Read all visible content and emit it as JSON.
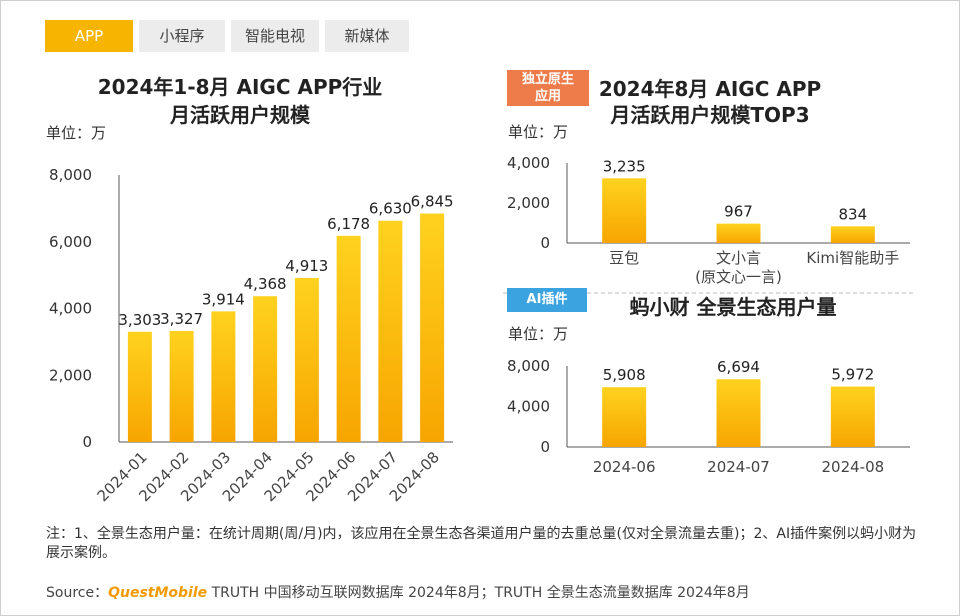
{
  "tabs": [
    {
      "label": "APP",
      "active": true
    },
    {
      "label": "小程序",
      "active": false
    },
    {
      "label": "智能电视",
      "active": false
    },
    {
      "label": "新媒体",
      "active": false
    }
  ],
  "colors": {
    "bar_top": "#ffd21f",
    "bar_bottom": "#f7a500",
    "tab_active": "#f7b400",
    "badge_orange": "#ee7b4a",
    "badge_blue": "#3aa3e0"
  },
  "badges": {
    "native": [
      "独立原生",
      "应用"
    ],
    "plugin": "AI插件"
  },
  "chart_data": [
    {
      "type": "bar",
      "title": [
        "2024年1-8月 AIGC APP行业",
        "月活跃用户规模"
      ],
      "unit_label": "单位：万",
      "categories": [
        "2024-01",
        "2024-02",
        "2024-03",
        "2024-04",
        "2024-05",
        "2024-06",
        "2024-07",
        "2024-08"
      ],
      "values": [
        3303,
        3327,
        3914,
        4368,
        4913,
        6178,
        6630,
        6845
      ],
      "value_labels": [
        "3,303",
        "3,327",
        "3,914",
        "4,368",
        "4,913",
        "6,178",
        "6,630",
        "6,845"
      ],
      "ylim": [
        0,
        8000
      ],
      "yticks": [
        "0",
        "2,000",
        "4,000",
        "6,000",
        "8,000"
      ]
    },
    {
      "type": "bar",
      "title": [
        "2024年8月 AIGC APP",
        "月活跃用户规模TOP3"
      ],
      "unit_label": "单位：万",
      "categories": [
        [
          "豆包"
        ],
        [
          "文小言",
          "(原文心一言)"
        ],
        [
          "Kimi智能助手"
        ]
      ],
      "values": [
        3235,
        967,
        834
      ],
      "value_labels": [
        "3,235",
        "967",
        "834"
      ],
      "ylim": [
        0,
        4000
      ],
      "yticks": [
        "0",
        "2,000",
        "4,000"
      ]
    },
    {
      "type": "bar",
      "title": [
        "蚂小财 全景生态用户量"
      ],
      "unit_label": "单位：万",
      "categories": [
        [
          "2024-06"
        ],
        [
          "2024-07"
        ],
        [
          "2024-08"
        ]
      ],
      "values": [
        5908,
        6694,
        5972
      ],
      "value_labels": [
        "5,908",
        "6,694",
        "5,972"
      ],
      "ylim": [
        0,
        8000
      ],
      "yticks": [
        "0",
        "4,000",
        "8,000"
      ]
    }
  ],
  "note": "注：1、全景生态用户量：在统计周期(周/月)内，该应用在全景生态各渠道用户量的去重总量(仅对全景流量去重)；2、AI插件案例以蚂小财为展示案例。",
  "source": {
    "prefix": "Source：",
    "brand": "QuestMobile",
    "text": " TRUTH 中国移动互联网数据库 2024年8月；TRUTH 全景生态流量数据库 2024年8月"
  }
}
